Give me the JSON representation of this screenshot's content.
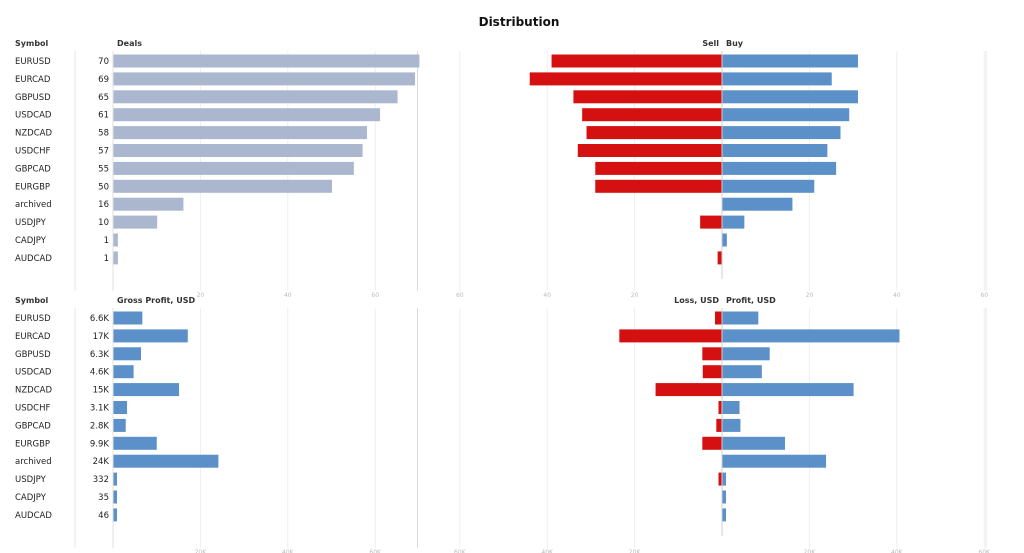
{
  "chart_data": [
    {
      "type": "bar",
      "title": "Distribution",
      "ylabel": "Symbol",
      "xlabel": "Deals",
      "categories": [
        "EURUSD",
        "EURCAD",
        "GBPUSD",
        "USDCAD",
        "NZDCAD",
        "USDCHF",
        "GBPCAD",
        "EURGBP",
        "archived",
        "USDJPY",
        "CADJPY",
        "AUDCAD"
      ],
      "values": [
        70,
        69,
        65,
        61,
        58,
        57,
        55,
        50,
        16,
        10,
        1,
        1
      ],
      "value_labels": [
        "70",
        "69",
        "65",
        "61",
        "58",
        "57",
        "55",
        "50",
        "16",
        "10",
        "1",
        "1"
      ],
      "xlim": [
        0,
        70
      ],
      "xticks": [
        20,
        40,
        60
      ],
      "xtick_labels": [
        "20",
        "40",
        "60"
      ],
      "color": "#aab7cf"
    },
    {
      "type": "bar",
      "title": "Sell / Buy",
      "categories": [
        "EURUSD",
        "EURCAD",
        "GBPUSD",
        "USDCAD",
        "NZDCAD",
        "USDCHF",
        "GBPCAD",
        "EURGBP",
        "archived",
        "USDJPY",
        "CADJPY",
        "AUDCAD"
      ],
      "series": [
        {
          "name": "Sell",
          "color": "#d41010",
          "values": [
            39,
            44,
            34,
            32,
            31,
            33,
            29,
            29,
            0,
            5,
            0,
            1
          ]
        },
        {
          "name": "Buy",
          "color": "#5b90c8",
          "values": [
            31,
            25,
            31,
            29,
            27,
            24,
            26,
            21,
            16,
            5,
            1,
            0
          ]
        }
      ],
      "xlim": [
        -60,
        60
      ],
      "xticks": [
        -60,
        -40,
        -20,
        20,
        40,
        60
      ],
      "xtick_labels": [
        "60",
        "40",
        "20",
        "20",
        "40",
        "60"
      ],
      "left_title": "Sell",
      "right_title": "Buy"
    },
    {
      "type": "bar",
      "ylabel": "Symbol",
      "xlabel": "Gross Profit, USD",
      "categories": [
        "EURUSD",
        "EURCAD",
        "GBPUSD",
        "USDCAD",
        "NZDCAD",
        "USDCHF",
        "GBPCAD",
        "EURGBP",
        "archived",
        "USDJPY",
        "CADJPY",
        "AUDCAD"
      ],
      "values": [
        6600,
        17000,
        6300,
        4600,
        15000,
        3100,
        2800,
        9900,
        24000,
        332,
        35,
        46
      ],
      "value_labels": [
        "6.6K",
        "17K",
        "6.3K",
        "4.6K",
        "15K",
        "3.1K",
        "2.8K",
        "9.9K",
        "24K",
        "332",
        "35",
        "46"
      ],
      "xlim": [
        0,
        70000
      ],
      "xticks": [
        20000,
        40000,
        60000
      ],
      "xtick_labels": [
        "20K",
        "40K",
        "60K"
      ],
      "color": "#5b90c8"
    },
    {
      "type": "bar",
      "title": "Loss, USD / Profit, USD",
      "categories": [
        "EURUSD",
        "EURCAD",
        "GBPUSD",
        "USDCAD",
        "NZDCAD",
        "USDCHF",
        "GBPCAD",
        "EURGBP",
        "archived",
        "USDJPY",
        "CADJPY",
        "AUDCAD"
      ],
      "series": [
        {
          "name": "Loss, USD",
          "color": "#d41010",
          "values": [
            1600,
            23500,
            4500,
            4400,
            15200,
            700,
            1300,
            4500,
            0,
            800,
            0,
            0
          ]
        },
        {
          "name": "Profit, USD",
          "color": "#5b90c8",
          "values": [
            8200,
            40500,
            10800,
            9000,
            30000,
            3900,
            4100,
            14300,
            23700,
            700,
            700,
            700
          ]
        }
      ],
      "xlim": [
        -60000,
        60000
      ],
      "xticks": [
        -60000,
        -40000,
        -20000,
        20000,
        40000,
        60000
      ],
      "xtick_labels": [
        "60K",
        "40K",
        "20K",
        "20K",
        "40K",
        "60K"
      ],
      "left_title": "Loss, USD",
      "right_title": "Profit, USD"
    }
  ]
}
